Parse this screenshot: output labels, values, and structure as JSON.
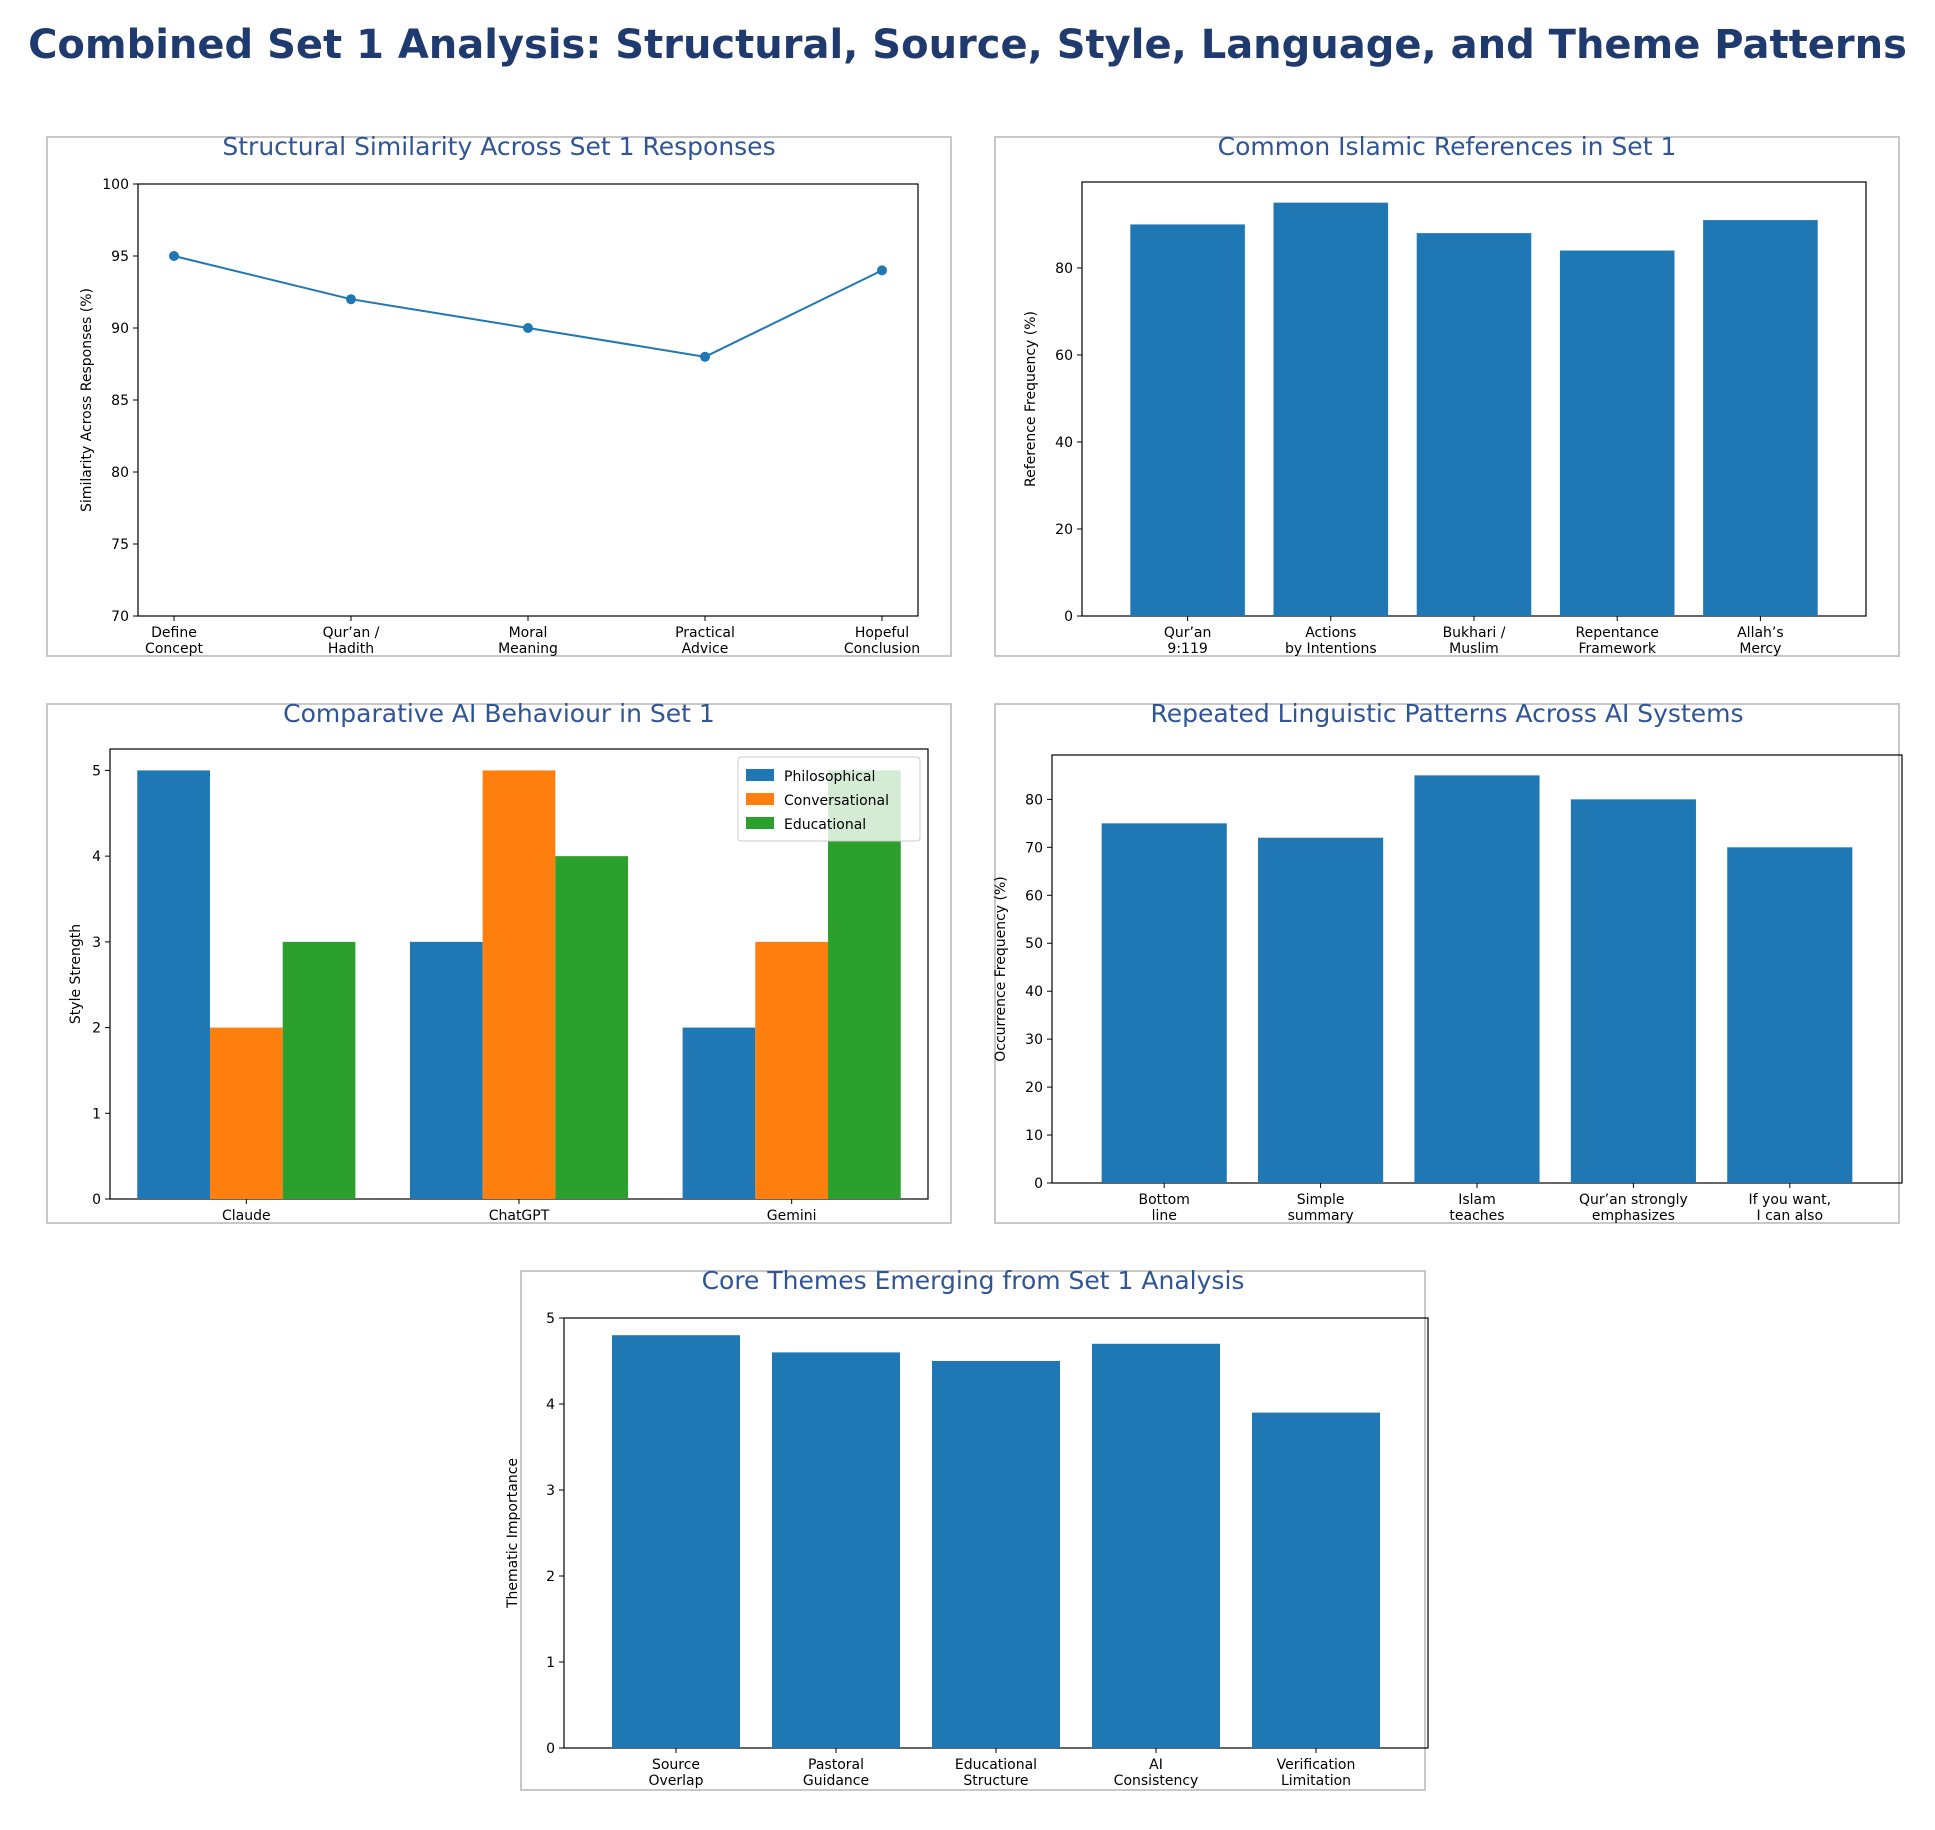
{
  "page_title": "Combined Set 1 Analysis: Structural, Source, Style, Language, and Theme Patterns",
  "colors": {
    "title": "#1f3a6e",
    "panel_title": "#2f5597",
    "bar": "#1f77b4",
    "orange": "#ff7f0e",
    "green": "#2ca02c",
    "border": "#c8c8c8"
  },
  "chart_data": [
    {
      "type": "line",
      "title": "Structural Similarity Across Set 1 Responses",
      "ylabel": "Similarity Across Responses (%)",
      "xlabel": "",
      "categories": [
        "Define\nConcept",
        "Qur’an /\nHadith",
        "Moral\nMeaning",
        "Practical\nAdvice",
        "Hopeful\nConclusion"
      ],
      "values": [
        95,
        92,
        90,
        88,
        94
      ],
      "ylim": [
        70,
        100
      ],
      "yticks": [
        70,
        75,
        80,
        85,
        90,
        95,
        100
      ],
      "grid": false
    },
    {
      "type": "bar",
      "title": "Common Islamic References in Set 1",
      "ylabel": "Reference Frequency (%)",
      "xlabel": "",
      "categories": [
        "Qur’an\n9:119",
        "Actions\nby Intentions",
        "Bukhari /\nMuslim",
        "Repentance\nFramework",
        "Allah’s\nMercy"
      ],
      "values": [
        90,
        95,
        88,
        84,
        91
      ],
      "ylim": [
        0,
        99.75
      ],
      "yticks": [
        0,
        20,
        40,
        60,
        80
      ],
      "grid": false
    },
    {
      "type": "bar",
      "title": "Comparative AI Behaviour in Set 1",
      "ylabel": "Style Strength",
      "xlabel": "",
      "categories": [
        "Claude",
        "ChatGPT",
        "Gemini"
      ],
      "series": [
        {
          "name": "Philosophical",
          "values": [
            5,
            3,
            2
          ],
          "color": "#1f77b4"
        },
        {
          "name": "Conversational",
          "values": [
            2,
            5,
            3
          ],
          "color": "#ff7f0e"
        },
        {
          "name": "Educational",
          "values": [
            3,
            4,
            5
          ],
          "color": "#2ca02c"
        }
      ],
      "ylim": [
        0,
        5.25
      ],
      "yticks": [
        0,
        1,
        2,
        3,
        4,
        5
      ],
      "legend": "top-right",
      "grid": false
    },
    {
      "type": "bar",
      "title": "Repeated Linguistic Patterns Across AI Systems",
      "ylabel": "Occurrence Frequency (%)",
      "xlabel": "",
      "categories": [
        "Bottom\nline",
        "Simple\nsummary",
        "Islam\nteaches",
        "Qur’an strongly\nemphasizes",
        "If you want,\nI can also"
      ],
      "values": [
        75,
        72,
        85,
        80,
        70
      ],
      "ylim": [
        0,
        89.25
      ],
      "yticks": [
        0,
        10,
        20,
        30,
        40,
        50,
        60,
        70,
        80
      ],
      "grid": false
    },
    {
      "type": "bar",
      "title": "Core Themes Emerging from Set 1 Analysis",
      "ylabel": "Thematic Importance",
      "xlabel": "",
      "categories": [
        "Source\nOverlap",
        "Pastoral\nGuidance",
        "Educational\nStructure",
        "AI\nConsistency",
        "Verification\nLimitation"
      ],
      "values": [
        4.8,
        4.6,
        4.5,
        4.7,
        3.9
      ],
      "ylim": [
        0,
        5
      ],
      "yticks": [
        0,
        1,
        2,
        3,
        4,
        5
      ],
      "grid": false
    }
  ]
}
